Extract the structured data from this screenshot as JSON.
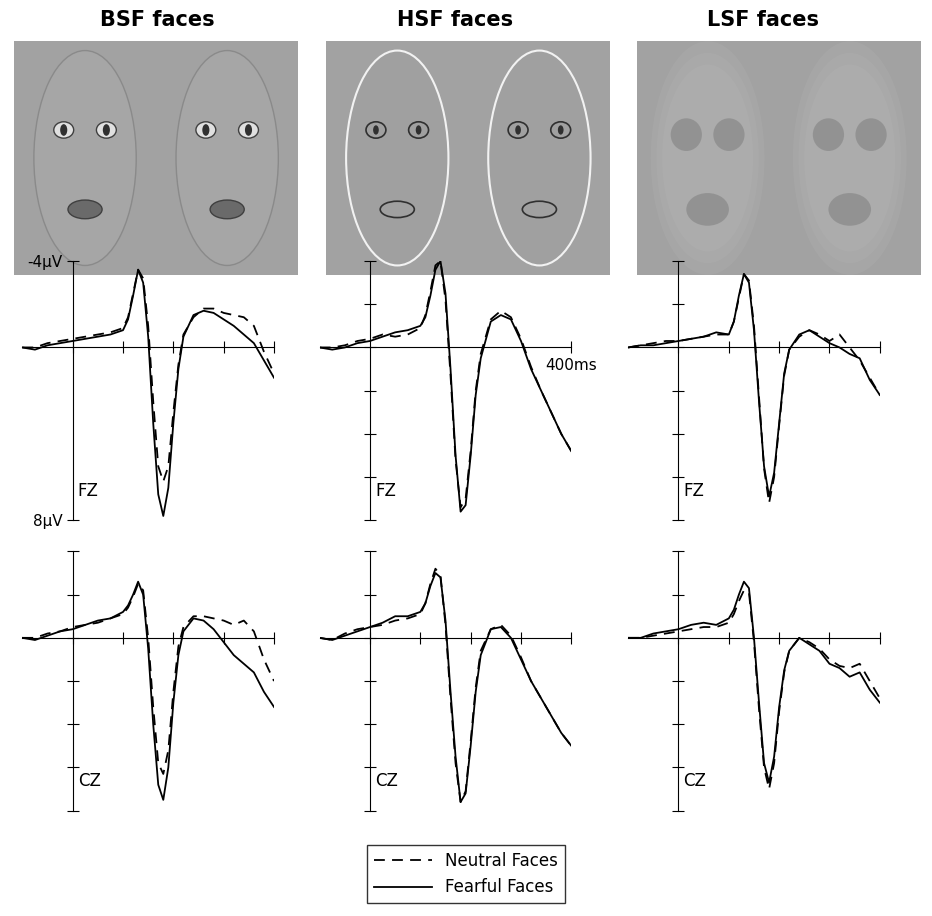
{
  "columns": [
    "BSF faces",
    "HSF faces",
    "LSF faces"
  ],
  "legend": "lower center",
  "chart_data": [
    {
      "type": "line",
      "annotation": "FZ",
      "x": [
        -100,
        -75,
        -50,
        -25,
        0,
        25,
        50,
        75,
        100,
        110,
        120,
        130,
        140,
        150,
        160,
        170,
        180,
        190,
        200,
        210,
        220,
        240,
        260,
        280,
        300,
        320,
        340,
        360,
        380,
        400
      ],
      "xlim": [
        -100,
        400
      ],
      "ylim": [
        8,
        -4
      ],
      "xticks": [
        0,
        100,
        200,
        300,
        400
      ],
      "yticks": [
        {
          "value": -4,
          "label": "-4µV"
        },
        {
          "value": 8,
          "label": "8µV"
        }
      ],
      "tick_labels": "y",
      "series": [
        {
          "name": "Neutral Faces",
          "color": "#000000",
          "line_style": "dashed",
          "values": [
            0,
            0,
            -0.2,
            -0.3,
            -0.4,
            -0.5,
            -0.6,
            -0.7,
            -0.9,
            -1.4,
            -2.5,
            -3.6,
            -3.2,
            -1.0,
            2.5,
            5.5,
            6.2,
            5.5,
            3.0,
            0.8,
            -0.6,
            -1.4,
            -1.8,
            -1.8,
            -1.6,
            -1.5,
            -1.4,
            -1.0,
            0.2,
            1.2
          ]
        },
        {
          "name": "Fearful Faces",
          "color": "#000000",
          "line_style": "solid",
          "values": [
            0,
            0.1,
            -0.1,
            -0.2,
            -0.3,
            -0.4,
            -0.5,
            -0.6,
            -0.8,
            -1.3,
            -2.4,
            -3.6,
            -3.0,
            -0.5,
            3.5,
            6.8,
            7.8,
            6.5,
            3.5,
            1.0,
            -0.5,
            -1.5,
            -1.7,
            -1.6,
            -1.3,
            -1.0,
            -0.6,
            -0.2,
            0.6,
            1.4
          ]
        }
      ]
    },
    {
      "type": "line",
      "annotation": "FZ",
      "x": [
        -100,
        -75,
        -50,
        -25,
        0,
        25,
        50,
        75,
        100,
        110,
        120,
        130,
        140,
        150,
        160,
        170,
        180,
        190,
        200,
        210,
        220,
        240,
        260,
        280,
        300,
        320,
        340,
        360,
        380,
        400
      ],
      "xlim": [
        -100,
        400
      ],
      "ylim": [
        8,
        -4
      ],
      "xticks": [
        {
          "value": 400,
          "label": "400ms"
        }
      ],
      "yticks": [
        -4,
        -2,
        0,
        2,
        4,
        6,
        8
      ],
      "tick_labels": "x",
      "series": [
        {
          "name": "Neutral Faces",
          "color": "#000000",
          "line_style": "dashed",
          "values": [
            0,
            0,
            -0.1,
            -0.3,
            -0.4,
            -0.6,
            -0.5,
            -0.6,
            -0.9,
            -1.5,
            -2.6,
            -3.8,
            -4.0,
            -2.2,
            1.3,
            5.2,
            7.4,
            7.0,
            4.8,
            2.0,
            0.3,
            -1.3,
            -1.7,
            -1.4,
            -0.4,
            0.9,
            2.0,
            3.0,
            4.0,
            4.8
          ]
        },
        {
          "name": "Fearful Faces",
          "color": "#000000",
          "line_style": "solid",
          "values": [
            0,
            0.1,
            0,
            -0.2,
            -0.3,
            -0.5,
            -0.7,
            -0.8,
            -1.0,
            -1.4,
            -2.4,
            -3.6,
            -4.0,
            -2.5,
            1.0,
            5.0,
            7.6,
            7.3,
            5.0,
            2.2,
            0.5,
            -1.2,
            -1.5,
            -1.3,
            -0.3,
            1.0,
            2.0,
            3.0,
            4.0,
            4.8
          ]
        }
      ]
    },
    {
      "type": "line",
      "annotation": "FZ",
      "x": [
        -100,
        -75,
        -50,
        -25,
        0,
        25,
        50,
        75,
        100,
        110,
        120,
        130,
        140,
        150,
        160,
        170,
        180,
        190,
        200,
        210,
        220,
        240,
        260,
        280,
        300,
        320,
        340,
        360,
        380,
        400
      ],
      "xlim": [
        -100,
        400
      ],
      "ylim": [
        8,
        -4
      ],
      "xticks": [
        0,
        100,
        200,
        300,
        400
      ],
      "yticks": [
        -4,
        -2,
        0,
        2,
        4,
        6,
        8
      ],
      "tick_labels": false,
      "series": [
        {
          "name": "Neutral Faces",
          "color": "#000000",
          "line_style": "dashed",
          "values": [
            0,
            -0.1,
            -0.2,
            -0.3,
            -0.3,
            -0.4,
            -0.5,
            -0.6,
            -0.6,
            -1.2,
            -2.3,
            -3.4,
            -3.1,
            -1.0,
            2.3,
            5.6,
            7.2,
            6.0,
            3.6,
            1.3,
            0.1,
            -0.5,
            -0.8,
            -0.6,
            -0.3,
            -0.6,
            0.0,
            0.6,
            1.4,
            2.2
          ]
        },
        {
          "name": "Fearful Faces",
          "color": "#000000",
          "line_style": "solid",
          "values": [
            0,
            -0.1,
            -0.1,
            -0.2,
            -0.3,
            -0.4,
            -0.5,
            -0.7,
            -0.6,
            -1.2,
            -2.4,
            -3.4,
            -3.0,
            -0.8,
            2.5,
            5.5,
            6.9,
            5.8,
            3.5,
            1.2,
            0.1,
            -0.6,
            -0.8,
            -0.5,
            -0.2,
            0,
            0.3,
            0.5,
            1.5,
            2.2
          ]
        }
      ]
    },
    {
      "type": "line",
      "annotation": "CZ",
      "x": [
        -100,
        -75,
        -50,
        -25,
        0,
        25,
        50,
        75,
        100,
        110,
        120,
        130,
        140,
        150,
        160,
        170,
        180,
        190,
        200,
        210,
        220,
        240,
        260,
        280,
        300,
        320,
        340,
        360,
        380,
        400
      ],
      "xlim": [
        -100,
        400
      ],
      "ylim": [
        8,
        -4
      ],
      "xticks": [
        0,
        100,
        200,
        300,
        400
      ],
      "yticks": [
        -4,
        -2,
        0,
        2,
        4,
        6,
        8
      ],
      "tick_labels": false,
      "series": [
        {
          "name": "Neutral Faces",
          "color": "#000000",
          "line_style": "dashed",
          "values": [
            0,
            0,
            -0.2,
            -0.3,
            -0.5,
            -0.6,
            -0.7,
            -0.9,
            -1.1,
            -1.4,
            -1.9,
            -2.5,
            -2.2,
            0,
            3.2,
            5.8,
            6.3,
            5.2,
            2.5,
            0.4,
            -0.5,
            -1.0,
            -1.0,
            -0.9,
            -0.8,
            -0.6,
            -0.8,
            -0.3,
            1.0,
            2.0
          ]
        },
        {
          "name": "Fearful Faces",
          "color": "#000000",
          "line_style": "solid",
          "values": [
            0,
            0.1,
            -0.1,
            -0.3,
            -0.4,
            -0.6,
            -0.8,
            -0.9,
            -1.2,
            -1.5,
            -2.0,
            -2.6,
            -2.0,
            0.5,
            4.0,
            6.8,
            7.5,
            6.0,
            3.0,
            0.8,
            -0.3,
            -0.9,
            -0.8,
            -0.4,
            0.2,
            0.8,
            1.2,
            1.6,
            2.5,
            3.2
          ]
        }
      ]
    },
    {
      "type": "line",
      "annotation": "CZ",
      "x": [
        -100,
        -75,
        -50,
        -25,
        0,
        25,
        50,
        75,
        100,
        110,
        120,
        130,
        140,
        150,
        160,
        170,
        180,
        190,
        200,
        210,
        220,
        240,
        260,
        280,
        300,
        320,
        340,
        360,
        380,
        400
      ],
      "xlim": [
        -100,
        400
      ],
      "ylim": [
        8,
        -4
      ],
      "xticks": [
        0,
        100,
        200,
        300,
        400
      ],
      "yticks": [
        -4,
        -2,
        0,
        2,
        4,
        6,
        8
      ],
      "tick_labels": false,
      "series": [
        {
          "name": "Neutral Faces",
          "color": "#000000",
          "line_style": "dashed",
          "values": [
            0,
            0.1,
            -0.2,
            -0.4,
            -0.5,
            -0.6,
            -0.8,
            -0.9,
            -1.1,
            -1.6,
            -2.5,
            -3.2,
            -2.9,
            -0.6,
            2.8,
            5.8,
            7.6,
            7.1,
            4.8,
            2.3,
            0.6,
            -0.4,
            -0.6,
            -0.1,
            0.9,
            2.0,
            2.8,
            3.6,
            4.4,
            5.0
          ]
        },
        {
          "name": "Fearful Faces",
          "color": "#000000",
          "line_style": "solid",
          "values": [
            0,
            0.1,
            -0.1,
            -0.3,
            -0.5,
            -0.7,
            -1.0,
            -1.0,
            -1.2,
            -1.6,
            -2.4,
            -3.0,
            -2.8,
            -0.8,
            2.5,
            5.5,
            7.6,
            7.2,
            5.0,
            2.5,
            0.8,
            -0.4,
            -0.5,
            0,
            1.0,
            2.0,
            2.8,
            3.6,
            4.4,
            5.0
          ]
        }
      ]
    },
    {
      "type": "line",
      "annotation": "CZ",
      "x": [
        -100,
        -75,
        -50,
        -25,
        0,
        25,
        50,
        75,
        100,
        110,
        120,
        130,
        140,
        150,
        160,
        170,
        180,
        190,
        200,
        210,
        220,
        240,
        260,
        280,
        300,
        320,
        340,
        360,
        380,
        400
      ],
      "xlim": [
        -100,
        400
      ],
      "ylim": [
        8,
        -4
      ],
      "xticks": [
        0,
        100,
        200,
        300,
        400
      ],
      "yticks": [
        -4,
        -2,
        0,
        2,
        4,
        6,
        8
      ],
      "tick_labels": false,
      "series": [
        {
          "name": "Neutral Faces",
          "color": "#000000",
          "line_style": "dashed",
          "values": [
            0,
            0,
            -0.1,
            -0.2,
            -0.3,
            -0.4,
            -0.5,
            -0.5,
            -0.7,
            -1.1,
            -1.7,
            -2.2,
            -2.1,
            0.2,
            3.3,
            6.0,
            7.0,
            5.8,
            3.4,
            1.6,
            0.6,
            0,
            0.2,
            0.5,
            1.0,
            1.3,
            1.4,
            1.2,
            2.0,
            2.8
          ]
        },
        {
          "name": "Fearful Faces",
          "color": "#000000",
          "line_style": "solid",
          "values": [
            0,
            0,
            -0.2,
            -0.3,
            -0.4,
            -0.6,
            -0.7,
            -0.6,
            -0.9,
            -1.3,
            -2.0,
            -2.6,
            -2.3,
            0,
            3.0,
            5.8,
            6.7,
            5.5,
            3.2,
            1.5,
            0.6,
            0,
            0.3,
            0.6,
            1.2,
            1.4,
            1.8,
            1.6,
            2.4,
            3.0
          ]
        }
      ]
    }
  ]
}
